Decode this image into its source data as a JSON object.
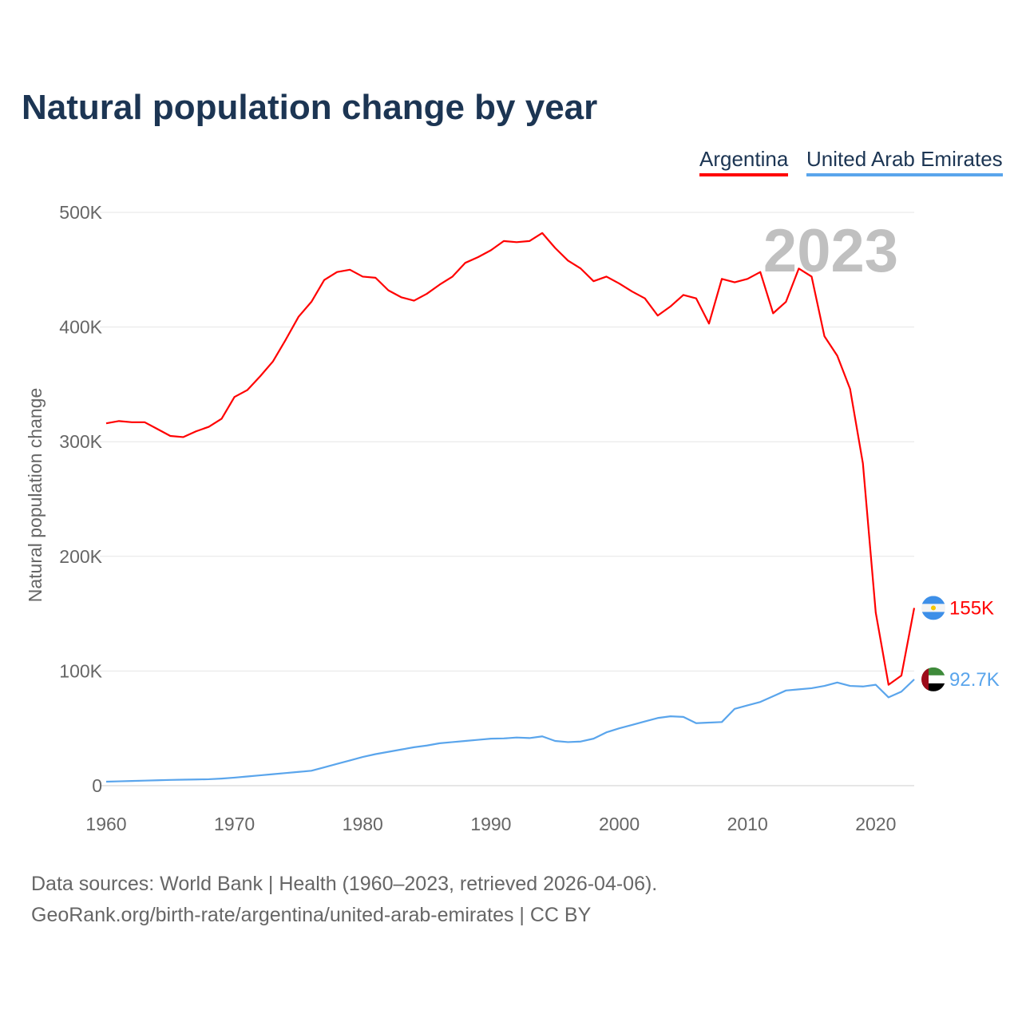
{
  "title": "Natural population change by year",
  "source_line1": "Data sources: World Bank | Health (1960–2023, retrieved 2026-04-06).",
  "source_line2": "GeoRank.org/birth-rate/argentina/united-arab-emirates | CC BY",
  "chart_data": {
    "type": "line",
    "title": "Natural population change by year",
    "xlabel": "",
    "ylabel": "Natural population change",
    "ylim": [
      0,
      500000
    ],
    "xlim": [
      1960,
      2023
    ],
    "year_label": "2023",
    "grid": true,
    "legend_position": "top-right",
    "xticks": [
      1960,
      1970,
      1980,
      1990,
      2000,
      2010,
      2020
    ],
    "xtick_labels": [
      "1960",
      "1970",
      "1980",
      "1990",
      "2000",
      "2010",
      "2020"
    ],
    "yticks": [
      0,
      100000,
      200000,
      300000,
      400000,
      500000
    ],
    "ytick_labels": [
      "0",
      "100K",
      "200K",
      "300K",
      "400K",
      "500K"
    ],
    "x": [
      1960,
      1961,
      1962,
      1963,
      1964,
      1965,
      1966,
      1967,
      1968,
      1969,
      1970,
      1971,
      1972,
      1973,
      1974,
      1975,
      1976,
      1977,
      1978,
      1979,
      1980,
      1981,
      1982,
      1983,
      1984,
      1985,
      1986,
      1987,
      1988,
      1989,
      1990,
      1991,
      1992,
      1993,
      1994,
      1995,
      1996,
      1997,
      1998,
      1999,
      2000,
      2001,
      2002,
      2003,
      2004,
      2005,
      2006,
      2007,
      2008,
      2009,
      2010,
      2011,
      2012,
      2013,
      2014,
      2015,
      2016,
      2017,
      2018,
      2019,
      2020,
      2021,
      2022,
      2023
    ],
    "series": [
      {
        "name": "Argentina",
        "color": "#ff0000",
        "end_label": "155K",
        "values": [
          316000,
          318000,
          317000,
          317000,
          311000,
          305000,
          304000,
          309000,
          313000,
          320000,
          339000,
          345000,
          357000,
          370000,
          389000,
          409000,
          422000,
          441000,
          448000,
          450000,
          444000,
          443000,
          432000,
          426000,
          423000,
          429000,
          437000,
          444000,
          456000,
          461000,
          467000,
          475000,
          474000,
          475000,
          482000,
          469000,
          458000,
          451000,
          440000,
          444000,
          438000,
          431000,
          425000,
          410000,
          418000,
          428000,
          425000,
          403000,
          442000,
          439000,
          442000,
          448000,
          412000,
          422000,
          451000,
          444000,
          392000,
          375000,
          346000,
          281000,
          151000,
          88000,
          96000,
          155000
        ]
      },
      {
        "name": "United Arab Emirates",
        "color": "#5aa5ec",
        "end_label": "92.7K",
        "values": [
          3500,
          3800,
          4100,
          4400,
          4700,
          5000,
          5200,
          5400,
          5600,
          6200,
          7000,
          8000,
          9000,
          10000,
          11000,
          12000,
          13000,
          16000,
          19000,
          22000,
          25000,
          27500,
          29500,
          31500,
          33500,
          35000,
          37000,
          38000,
          39000,
          40000,
          41000,
          41200,
          42000,
          41500,
          43000,
          39000,
          38000,
          38500,
          41000,
          46500,
          50000,
          53000,
          56000,
          59000,
          60500,
          60000,
          54500,
          55000,
          55500,
          67000,
          70000,
          73000,
          78000,
          83000,
          84000,
          85000,
          87000,
          90000,
          87000,
          86500,
          88000,
          77000,
          82000,
          92700
        ]
      }
    ]
  }
}
